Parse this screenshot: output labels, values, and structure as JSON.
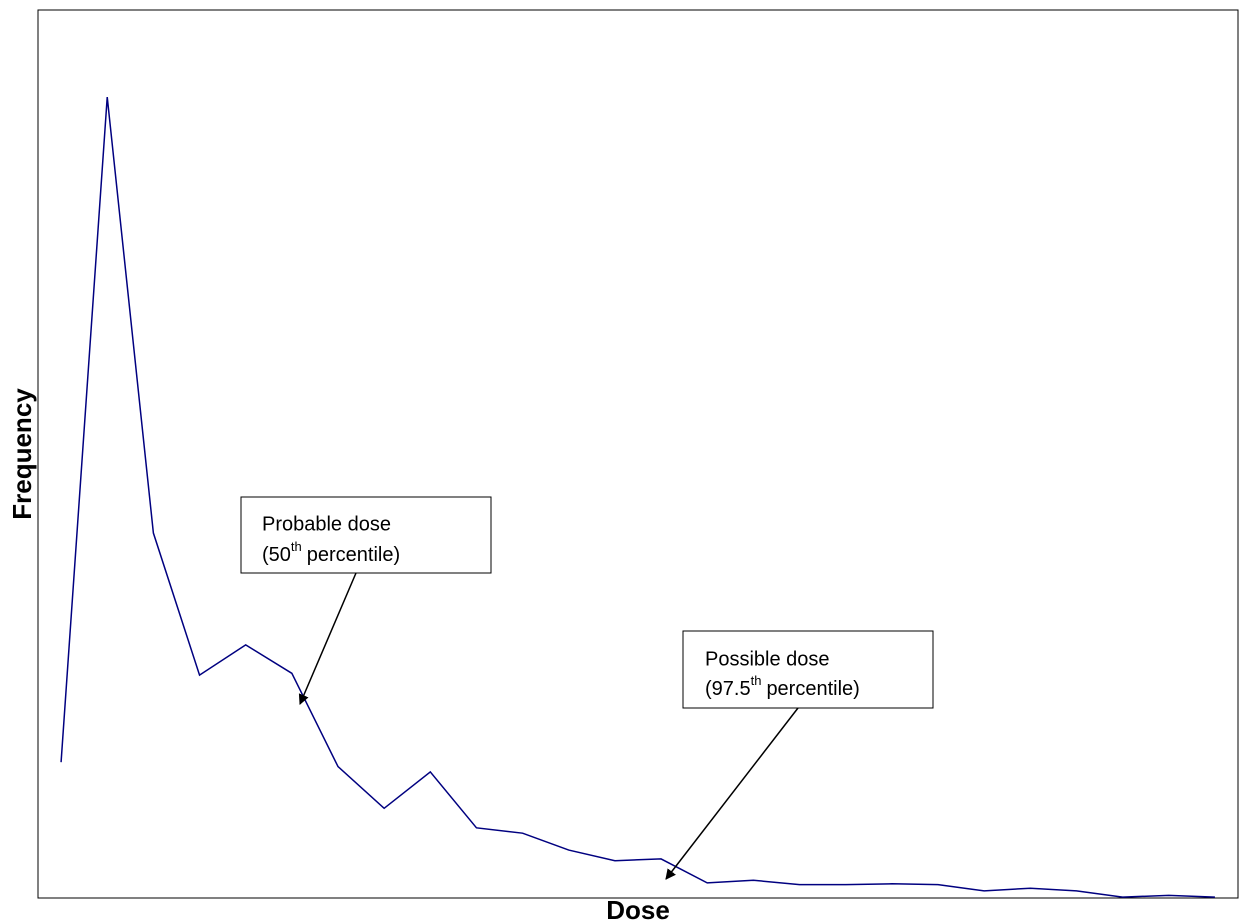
{
  "chart_data": {
    "type": "line",
    "x_label": "Dose",
    "y_label": "Frequency",
    "categories": [
      null,
      null,
      null,
      null,
      null,
      null,
      null,
      null,
      null,
      null,
      null,
      null,
      null,
      null,
      null,
      null,
      null,
      null,
      null,
      null,
      null,
      null,
      null,
      null,
      null,
      null
    ],
    "values": [
      15.3,
      90.2,
      41.1,
      25.1,
      28.5,
      25.3,
      14.8,
      10.1,
      14.2,
      7.9,
      7.3,
      5.4,
      4.2,
      4.4,
      1.7,
      2.0,
      1.5,
      1.5,
      1.6,
      1.5,
      0.8,
      1.1,
      0.8,
      0.1,
      0.3,
      0.1
    ],
    "color": "#000080",
    "ylim": [
      0,
      100
    ],
    "annotations": [
      {
        "line1": "Probable dose",
        "line2_start": "(50",
        "sup": "th",
        "line2_end": "percentile)"
      },
      {
        "line1": "Possible dose",
        "line2_start": "(97.5",
        "sup": "th",
        "line2_end": "percentile)"
      }
    ]
  }
}
